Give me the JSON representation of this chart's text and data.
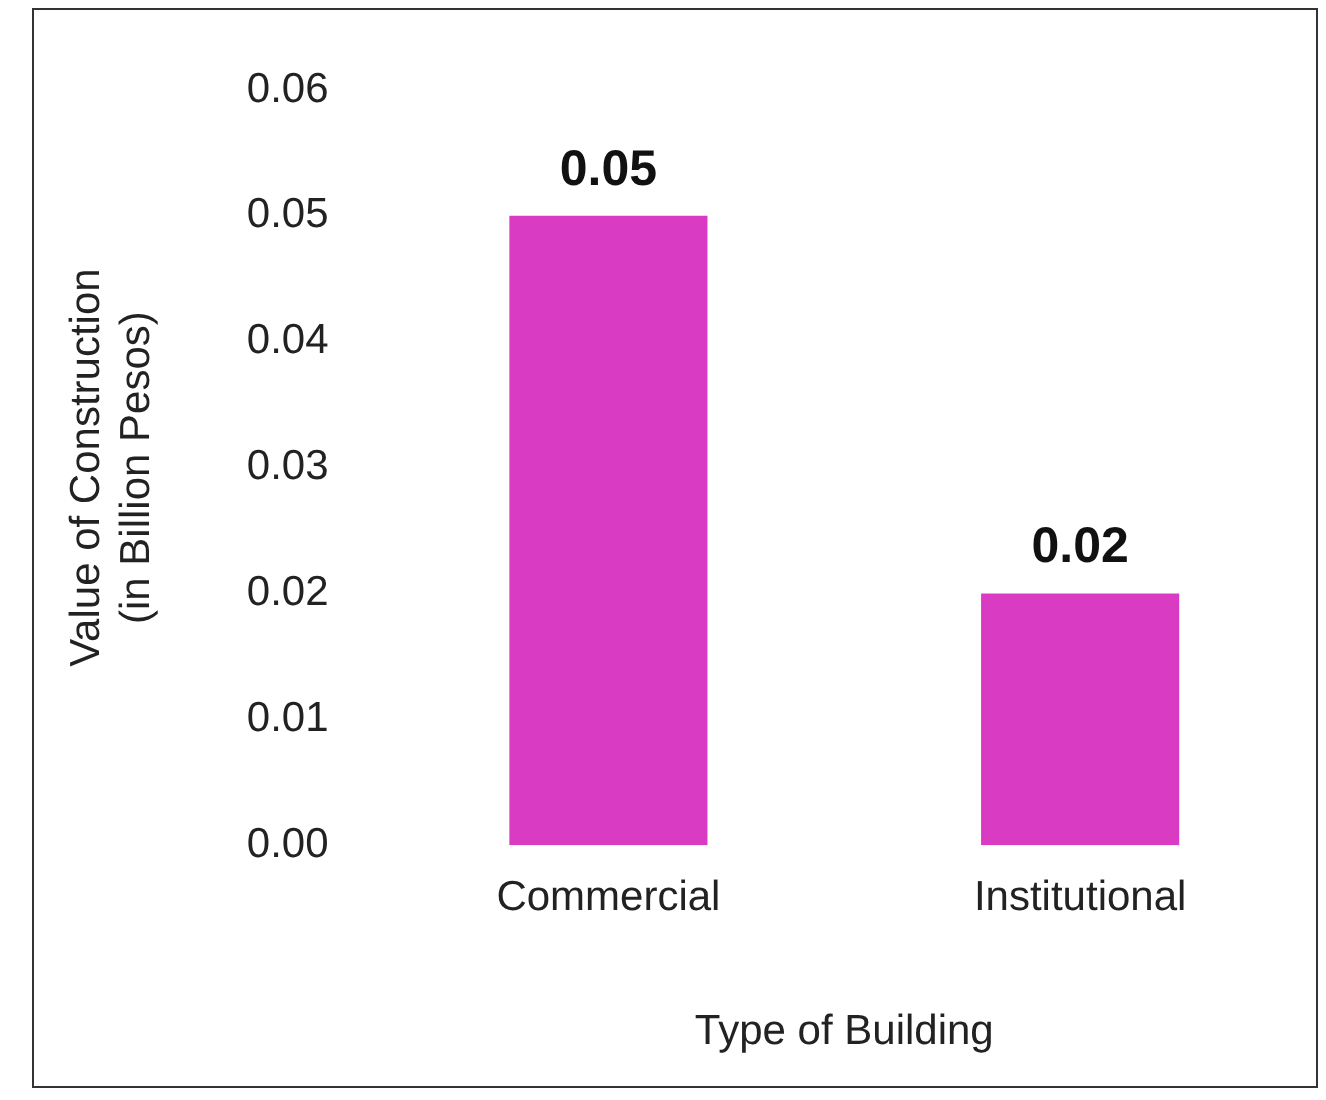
{
  "chart_data": {
    "type": "bar",
    "xlabel": "Type of Building",
    "ylabel": "Value of Construction\n(in Billion Pesos)",
    "categories": [
      "Commercial",
      "Institutional"
    ],
    "values": [
      0.05,
      0.02
    ],
    "color": "#d93cc3",
    "ylim": [
      0,
      0.06
    ],
    "yticks": [
      {
        "value": 0,
        "label": "0.00"
      },
      {
        "value": 0.01,
        "label": "0.01"
      },
      {
        "value": 0.02,
        "label": "0.02"
      },
      {
        "value": 0.03,
        "label": "0.03"
      },
      {
        "value": 0.04,
        "label": "0.04"
      },
      {
        "value": 0.05,
        "label": "0.05"
      },
      {
        "value": 0.06,
        "label": "0.06"
      }
    ],
    "grid": false,
    "legend": false,
    "data_labels": true
  }
}
